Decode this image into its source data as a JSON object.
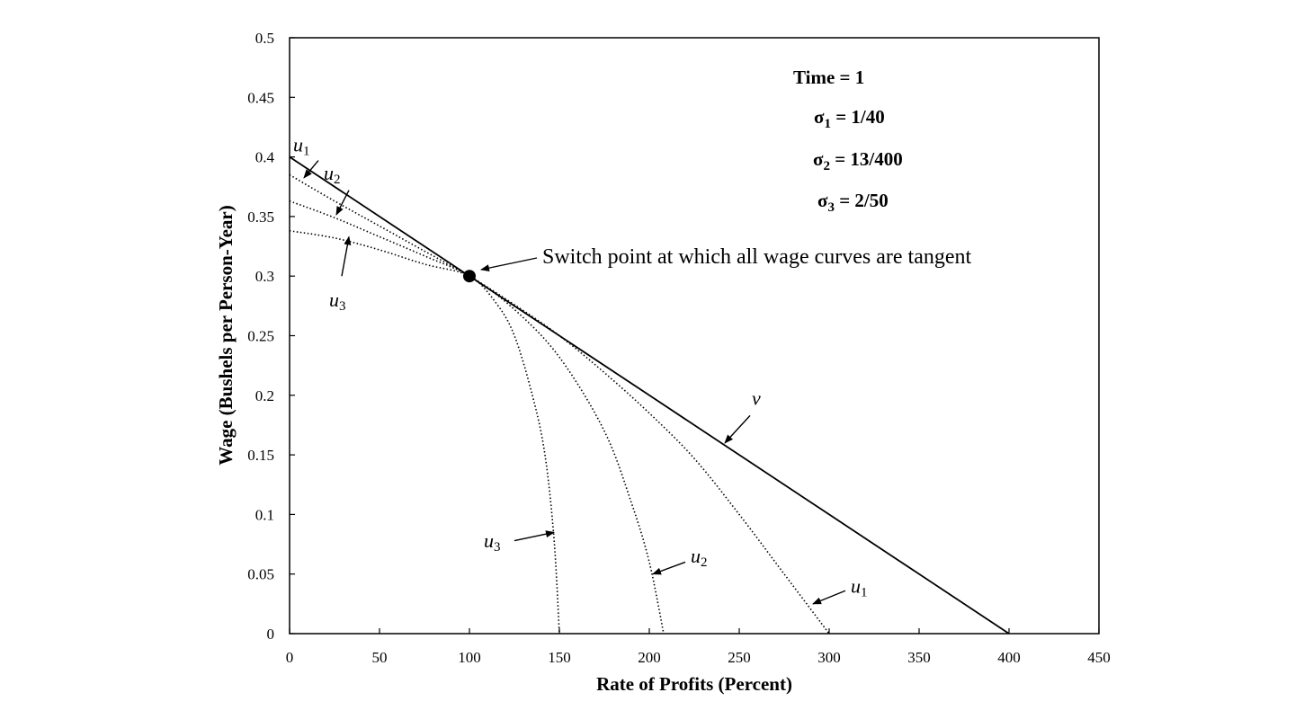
{
  "chart_data": {
    "type": "line",
    "xlabel": "Rate of Profits (Percent)",
    "ylabel": "Wage (Bushels per Person-Year)",
    "xlim": [
      0,
      450
    ],
    "ylim": [
      0,
      0.5
    ],
    "x_ticks": [
      "0",
      "50",
      "100",
      "150",
      "200",
      "250",
      "300",
      "350",
      "400",
      "450"
    ],
    "y_ticks": [
      "0",
      "0.05",
      "0.1",
      "0.15",
      "0.2",
      "0.25",
      "0.3",
      "0.35",
      "0.4",
      "0.45",
      "0.5"
    ],
    "parameters": {
      "time": "Time = 1",
      "sigma1": {
        "symbol": "σ",
        "sub": "1",
        "value": " = 1/40"
      },
      "sigma2": {
        "symbol": "σ",
        "sub": "2",
        "value": " = 13/400"
      },
      "sigma3": {
        "symbol": "σ",
        "sub": "3",
        "value": " = 2/50"
      }
    },
    "series": [
      {
        "name": "v",
        "style": "solid",
        "x": [
          0,
          100,
          200,
          300,
          400
        ],
        "y": [
          0.4,
          0.3,
          0.2,
          0.1,
          0
        ]
      },
      {
        "name": "u1",
        "style": "dotted",
        "x": [
          0,
          25,
          50,
          75,
          100,
          125,
          150,
          175,
          200,
          225,
          250,
          275,
          300
        ],
        "y": [
          0.385,
          0.363,
          0.342,
          0.321,
          0.3,
          0.276,
          0.25,
          0.219,
          0.185,
          0.147,
          0.1,
          0.05,
          0.0
        ]
      },
      {
        "name": "u2",
        "style": "dotted",
        "x": [
          0,
          25,
          50,
          75,
          100,
          125,
          150,
          175,
          190,
          200,
          208
        ],
        "y": [
          0.363,
          0.349,
          0.333,
          0.317,
          0.3,
          0.272,
          0.232,
          0.17,
          0.11,
          0.06,
          0.0
        ]
      },
      {
        "name": "u3",
        "style": "dotted",
        "x": [
          0,
          25,
          50,
          75,
          100,
          115,
          125,
          135,
          142,
          147,
          150
        ],
        "y": [
          0.338,
          0.332,
          0.322,
          0.31,
          0.3,
          0.277,
          0.25,
          0.2,
          0.15,
          0.08,
          0.0
        ]
      }
    ],
    "switch_point": {
      "x": 100,
      "y": 0.3,
      "label": "Switch point at which all wage curves are tangent"
    },
    "curve_labels": [
      {
        "letter": "u",
        "sub": "1",
        "tx": 2,
        "ty": 0.4045,
        "ax": 8,
        "ay": 0.3825,
        "fx": 16,
        "fy": 0.397
      },
      {
        "letter": "u",
        "sub": "2",
        "tx": 19,
        "ty": 0.381,
        "ax": 26,
        "ay": 0.3515,
        "fx": 33,
        "fy": 0.372
      },
      {
        "letter": "u",
        "sub": "3",
        "tx": 22,
        "ty": 0.2745,
        "ax": 33,
        "ay": 0.333,
        "fx": 29,
        "fy": 0.3
      },
      {
        "letter": "v",
        "sub": "",
        "tx": 257,
        "ty": 0.192,
        "ax": 242,
        "ay": 0.16,
        "fx": 256,
        "fy": 0.183
      },
      {
        "letter": "u",
        "sub": "1",
        "tx": 312,
        "ty": 0.0345,
        "ax": 291,
        "ay": 0.025,
        "fx": 309,
        "fy": 0.036
      },
      {
        "letter": "u",
        "sub": "2",
        "tx": 223,
        "ty": 0.0595,
        "ax": 202,
        "ay": 0.05,
        "fx": 220,
        "fy": 0.06
      },
      {
        "letter": "u",
        "sub": "3",
        "tx": 108,
        "ty": 0.0725,
        "ax": 147,
        "ay": 0.085,
        "fx": 125,
        "fy": 0.078
      }
    ]
  }
}
